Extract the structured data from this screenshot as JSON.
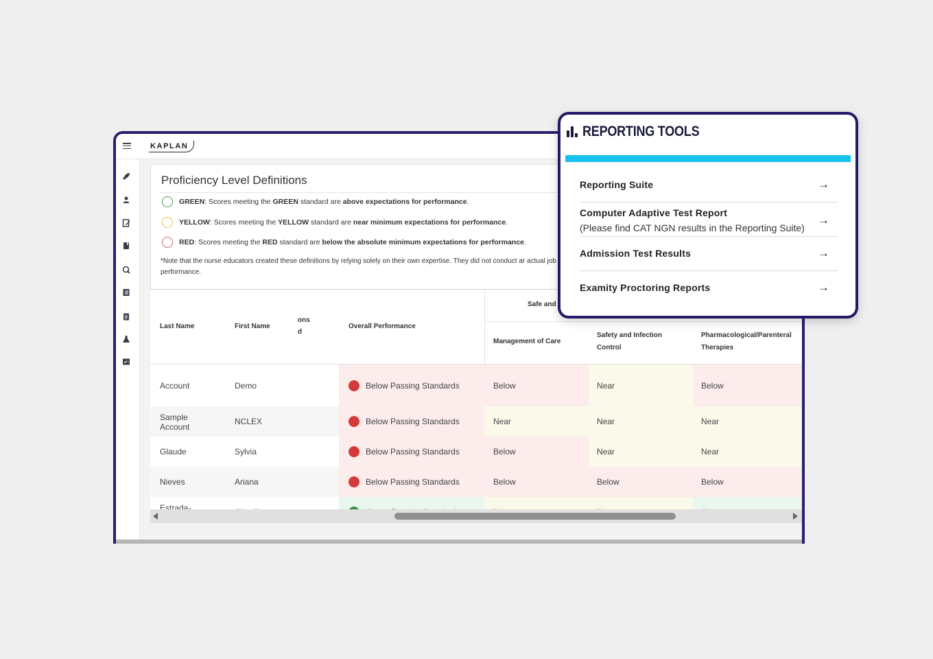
{
  "app": {
    "logo": "KAPLAN"
  },
  "sidebar": {
    "icons": [
      "rocket-icon",
      "person-icon",
      "edit-document-icon",
      "book-icon",
      "search-q-icon",
      "notes-icon",
      "clipboard-icon",
      "flask-icon",
      "checklist-icon"
    ]
  },
  "definitions": {
    "title": "Proficiency Level Definitions",
    "green": {
      "label": "GREEN",
      "pre": ": Scores meeting the ",
      "std": "GREEN",
      "mid": " standard are ",
      "bold": "above expectations for performance",
      "end": ".",
      "color": "#4f9a51"
    },
    "yellow": {
      "label": "YELLOW",
      "pre": ": Scores meeting the ",
      "std": "YELLOW",
      "mid": " standard are ",
      "bold": "near minimum expectations for performance",
      "end": ".",
      "color": "#e8c14f"
    },
    "red": {
      "label": "RED",
      "pre": ": Scores meeting the ",
      "std": "RED",
      "mid": " standard are ",
      "bold": "below the absolute minimum expectations for performance",
      "end": ".",
      "color": "#d46a6a"
    },
    "note": "*Note that the nurse educators created these definitions by relying solely on their own expertise. They did not conduct ar actual job performance."
  },
  "table": {
    "headers": {
      "last_name": "Last Name",
      "first_name": "First Name",
      "partial_col": "ons\nd",
      "overall": "Overall Performance",
      "group": "Safe and",
      "management": "Management of Care",
      "safety": "Safety and Infection Control",
      "pharma": "Pharmacological/Parenteral Therapies"
    },
    "rows": [
      {
        "last": "Account",
        "first": "Demo",
        "overall": "Below Passing Standards",
        "status": "red",
        "management": "Below",
        "safety": "Near",
        "pharma": "Below"
      },
      {
        "last": "Sample Account",
        "first": "NCLEX",
        "overall": "Below Passing Standards",
        "status": "red",
        "management": "Near",
        "safety": "Near",
        "pharma": "Near"
      },
      {
        "last": "Glaude",
        "first": "Sylvia",
        "overall": "Below Passing Standards",
        "status": "red",
        "management": "Below",
        "safety": "Near",
        "pharma": "Near"
      },
      {
        "last": "Nieves",
        "first": "Ariana",
        "overall": "Below Passing Standards",
        "status": "red",
        "management": "Below",
        "safety": "Below",
        "pharma": "Below"
      },
      {
        "last": "Estrada-Hickman",
        "first": "Claudia",
        "overall": "Above Passing Standards",
        "status": "green",
        "management": "Near",
        "safety": "Near",
        "pharma": "Above"
      }
    ],
    "colors": {
      "red_dot": "#d33a3a",
      "green_dot": "#3e8a3e",
      "below_bg": "#fcecec",
      "near_bg": "#fbf9ea",
      "above_bg": "#eaf7ef"
    }
  },
  "reporting_tools": {
    "title": "REPORTING TOOLS",
    "accent_color": "#16c2ee",
    "items": [
      {
        "label": "Reporting Suite",
        "sub": ""
      },
      {
        "label": "Computer Adaptive Test Report",
        "sub": "(Please find CAT NGN results in the Reporting Suite)"
      },
      {
        "label": "Admission Test Results",
        "sub": ""
      },
      {
        "label": "Examity Proctoring Reports",
        "sub": ""
      }
    ],
    "arrow": "→"
  }
}
